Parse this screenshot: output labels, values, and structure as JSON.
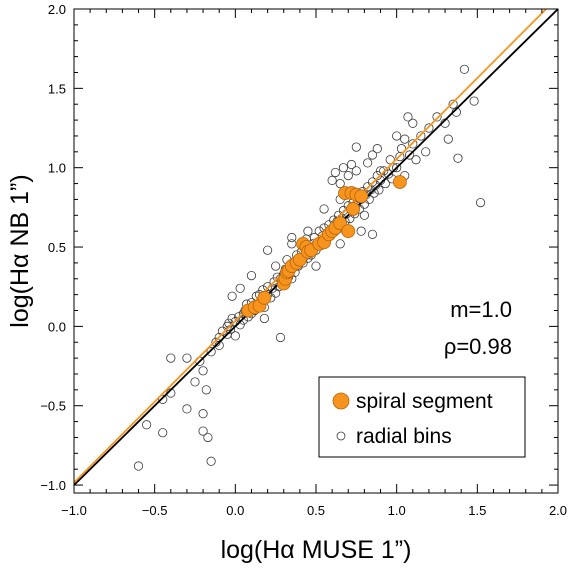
{
  "chart_data": {
    "type": "scatter",
    "xlabel": "log(Hα MUSE 1”)",
    "ylabel": "log(Hα NB 1”)",
    "xlim": [
      -1.0,
      2.0
    ],
    "ylim": [
      -1.05,
      2.0
    ],
    "x_ticks": [
      -1.0,
      -0.5,
      0.0,
      0.5,
      1.0,
      1.5,
      2.0
    ],
    "x_tick_labels": [
      "−1.0",
      "−0.5",
      "0.0",
      "0.5",
      "1.0",
      "1.5",
      "2.0"
    ],
    "y_ticks": [
      -1.0,
      -0.5,
      0.0,
      0.5,
      1.0,
      1.5,
      2.0
    ],
    "y_tick_labels": [
      "−1.0",
      "−0.5",
      "0.0",
      "0.5",
      "1.0",
      "1.5",
      "2.0"
    ],
    "annotations": {
      "slope": "m=1.0",
      "correlation": "ρ=0.98"
    },
    "legend": {
      "placement": "bottom-right",
      "entries": [
        {
          "label": "spiral segment",
          "marker": "filled-circle",
          "color": "#f7941d"
        },
        {
          "label": "radial bins",
          "marker": "open-circle",
          "color": "#000000"
        }
      ]
    },
    "lines": [
      {
        "id": "one-to-one-line",
        "color": "#000000",
        "slope": 1.0,
        "intercept": 0.0
      },
      {
        "id": "fit-line",
        "color": "#f7941d",
        "slope": 1.02,
        "intercept": 0.035
      }
    ],
    "series": [
      {
        "name": "spiral segment",
        "color": "#f7941d",
        "points": [
          [
            0.08,
            0.1
          ],
          [
            0.12,
            0.12
          ],
          [
            0.15,
            0.13
          ],
          [
            0.18,
            0.18
          ],
          [
            0.3,
            0.27
          ],
          [
            0.31,
            0.3
          ],
          [
            0.32,
            0.34
          ],
          [
            0.33,
            0.35
          ],
          [
            0.35,
            0.38
          ],
          [
            0.38,
            0.4
          ],
          [
            0.4,
            0.42
          ],
          [
            0.42,
            0.52
          ],
          [
            0.44,
            0.5
          ],
          [
            0.45,
            0.47
          ],
          [
            0.47,
            0.48
          ],
          [
            0.52,
            0.52
          ],
          [
            0.55,
            0.53
          ],
          [
            0.58,
            0.58
          ],
          [
            0.6,
            0.6
          ],
          [
            0.62,
            0.62
          ],
          [
            0.65,
            0.65
          ],
          [
            0.68,
            0.84
          ],
          [
            0.7,
            0.6
          ],
          [
            0.72,
            0.84
          ],
          [
            0.73,
            0.74
          ],
          [
            0.75,
            0.83
          ],
          [
            0.78,
            0.82
          ],
          [
            1.02,
            0.91
          ]
        ]
      },
      {
        "name": "radial bins",
        "color": "#000000",
        "points": [
          [
            -0.6,
            -0.88
          ],
          [
            -0.55,
            -0.62
          ],
          [
            -0.45,
            -0.46
          ],
          [
            -0.45,
            -0.67
          ],
          [
            -0.4,
            -0.42
          ],
          [
            -0.4,
            -0.2
          ],
          [
            -0.3,
            -0.2
          ],
          [
            -0.3,
            -0.52
          ],
          [
            -0.25,
            -0.35
          ],
          [
            -0.22,
            -0.22
          ],
          [
            -0.2,
            -0.28
          ],
          [
            -0.2,
            -0.55
          ],
          [
            -0.2,
            -0.66
          ],
          [
            -0.18,
            -0.4
          ],
          [
            -0.17,
            -0.7
          ],
          [
            -0.15,
            -0.85
          ],
          [
            -0.15,
            -0.16
          ],
          [
            -0.12,
            -0.1
          ],
          [
            -0.1,
            -0.07
          ],
          [
            -0.1,
            -0.12
          ],
          [
            -0.08,
            -0.03
          ],
          [
            -0.05,
            0.0
          ],
          [
            -0.05,
            -0.05
          ],
          [
            -0.04,
            0.02
          ],
          [
            -0.03,
            -0.02
          ],
          [
            -0.02,
            0.05
          ],
          [
            0.0,
            0.03
          ],
          [
            0.0,
            -0.06
          ],
          [
            0.02,
            0.06
          ],
          [
            0.03,
            0.01
          ],
          [
            0.05,
            0.08
          ],
          [
            0.05,
            0.04
          ],
          [
            0.06,
            0.1
          ],
          [
            0.07,
            0.14
          ],
          [
            0.08,
            0.06
          ],
          [
            0.09,
            0.11
          ],
          [
            0.1,
            0.15
          ],
          [
            0.1,
            0.08
          ],
          [
            0.12,
            0.1
          ],
          [
            0.13,
            0.19
          ],
          [
            0.14,
            0.13
          ],
          [
            0.15,
            0.2
          ],
          [
            0.16,
            0.16
          ],
          [
            0.17,
            0.23
          ],
          [
            0.18,
            0.12
          ],
          [
            0.2,
            0.2
          ],
          [
            0.2,
            0.25
          ],
          [
            0.22,
            0.18
          ],
          [
            0.23,
            0.24
          ],
          [
            0.24,
            0.28
          ],
          [
            0.25,
            0.21
          ],
          [
            0.26,
            0.31
          ],
          [
            0.27,
            0.25
          ],
          [
            0.28,
            -0.07
          ],
          [
            0.28,
            0.3
          ],
          [
            0.3,
            0.33
          ],
          [
            0.3,
            0.27
          ],
          [
            0.31,
            0.36
          ],
          [
            0.32,
            0.42
          ],
          [
            0.33,
            0.31
          ],
          [
            0.34,
            0.37
          ],
          [
            0.35,
            0.3
          ],
          [
            0.35,
            0.52
          ],
          [
            0.36,
            0.4
          ],
          [
            0.37,
            0.34
          ],
          [
            0.38,
            0.45
          ],
          [
            0.39,
            0.38
          ],
          [
            0.4,
            0.42
          ],
          [
            0.41,
            0.47
          ],
          [
            0.42,
            0.4
          ],
          [
            0.43,
            0.44
          ],
          [
            0.44,
            0.55
          ],
          [
            0.45,
            0.43
          ],
          [
            0.46,
            0.49
          ],
          [
            0.47,
            0.45
          ],
          [
            0.48,
            0.52
          ],
          [
            0.49,
            0.56
          ],
          [
            0.5,
            0.48
          ],
          [
            0.51,
            0.53
          ],
          [
            0.52,
            0.6
          ],
          [
            0.53,
            0.51
          ],
          [
            0.54,
            0.57
          ],
          [
            0.55,
            0.62
          ],
          [
            0.56,
            0.55
          ],
          [
            0.57,
            0.59
          ],
          [
            0.58,
            0.64
          ],
          [
            0.59,
            0.57
          ],
          [
            0.6,
            0.61
          ],
          [
            0.61,
            0.67
          ],
          [
            0.62,
            0.6
          ],
          [
            0.63,
            0.66
          ],
          [
            0.64,
            0.7
          ],
          [
            0.65,
            0.62
          ],
          [
            0.66,
            0.68
          ],
          [
            0.67,
            0.73
          ],
          [
            0.68,
            0.66
          ],
          [
            0.69,
            0.71
          ],
          [
            0.7,
            0.76
          ],
          [
            0.71,
            0.68
          ],
          [
            0.72,
            0.74
          ],
          [
            0.73,
            0.78
          ],
          [
            0.74,
            0.71
          ],
          [
            0.75,
            0.77
          ],
          [
            0.76,
            0.81
          ],
          [
            0.77,
            0.74
          ],
          [
            0.78,
            0.8
          ],
          [
            0.79,
            0.85
          ],
          [
            0.8,
            0.77
          ],
          [
            0.81,
            0.83
          ],
          [
            0.82,
            0.88
          ],
          [
            0.83,
            0.8
          ],
          [
            0.84,
            0.86
          ],
          [
            0.85,
            0.91
          ],
          [
            0.86,
            0.84
          ],
          [
            0.87,
            0.89
          ],
          [
            0.88,
            0.95
          ],
          [
            0.89,
            0.86
          ],
          [
            0.9,
            0.92
          ],
          [
            0.92,
            0.98
          ],
          [
            0.93,
            0.9
          ],
          [
            0.95,
            0.96
          ],
          [
            0.96,
            1.05
          ],
          [
            0.97,
            0.93
          ],
          [
            0.98,
            1.0
          ],
          [
            0.6,
            0.92
          ],
          [
            0.62,
            0.97
          ],
          [
            0.65,
            0.9
          ],
          [
            0.67,
            1.0
          ],
          [
            0.7,
            0.95
          ],
          [
            0.72,
            1.02
          ],
          [
            0.82,
            1.03
          ],
          [
            0.85,
            1.08
          ],
          [
            0.88,
            1.12
          ],
          [
            0.9,
            0.98
          ],
          [
            0.75,
            0.98
          ],
          [
            0.78,
            0.6
          ],
          [
            0.8,
            0.7
          ],
          [
            0.85,
            0.58
          ],
          [
            0.2,
            0.48
          ],
          [
            0.25,
            0.38
          ],
          [
            0.35,
            0.56
          ],
          [
            0.45,
            0.6
          ],
          [
            0.55,
            0.74
          ],
          [
            0.65,
            0.8
          ],
          [
            -0.02,
            0.19
          ],
          [
            0.03,
            0.24
          ],
          [
            0.1,
            0.32
          ],
          [
            0.18,
            0.05
          ],
          [
            0.5,
            0.38
          ],
          [
            0.65,
            0.52
          ],
          [
            1.0,
            1.0
          ],
          [
            1.02,
            1.07
          ],
          [
            1.03,
            1.12
          ],
          [
            1.05,
            1.18
          ],
          [
            1.08,
            1.08
          ],
          [
            1.1,
            1.15
          ],
          [
            1.12,
            1.05
          ],
          [
            1.15,
            1.2
          ],
          [
            1.18,
            1.1
          ],
          [
            1.2,
            1.25
          ],
          [
            1.25,
            1.32
          ],
          [
            1.3,
            1.28
          ],
          [
            1.32,
            1.18
          ],
          [
            1.35,
            1.4
          ],
          [
            1.37,
            1.35
          ],
          [
            1.38,
            1.06
          ],
          [
            1.42,
            1.62
          ],
          [
            1.48,
            1.42
          ],
          [
            1.52,
            0.78
          ],
          [
            1.07,
            1.32
          ],
          [
            1.1,
            1.28
          ],
          [
            1.05,
            0.95
          ],
          [
            1.0,
            1.2
          ],
          [
            0.75,
            1.13
          ]
        ]
      }
    ]
  }
}
